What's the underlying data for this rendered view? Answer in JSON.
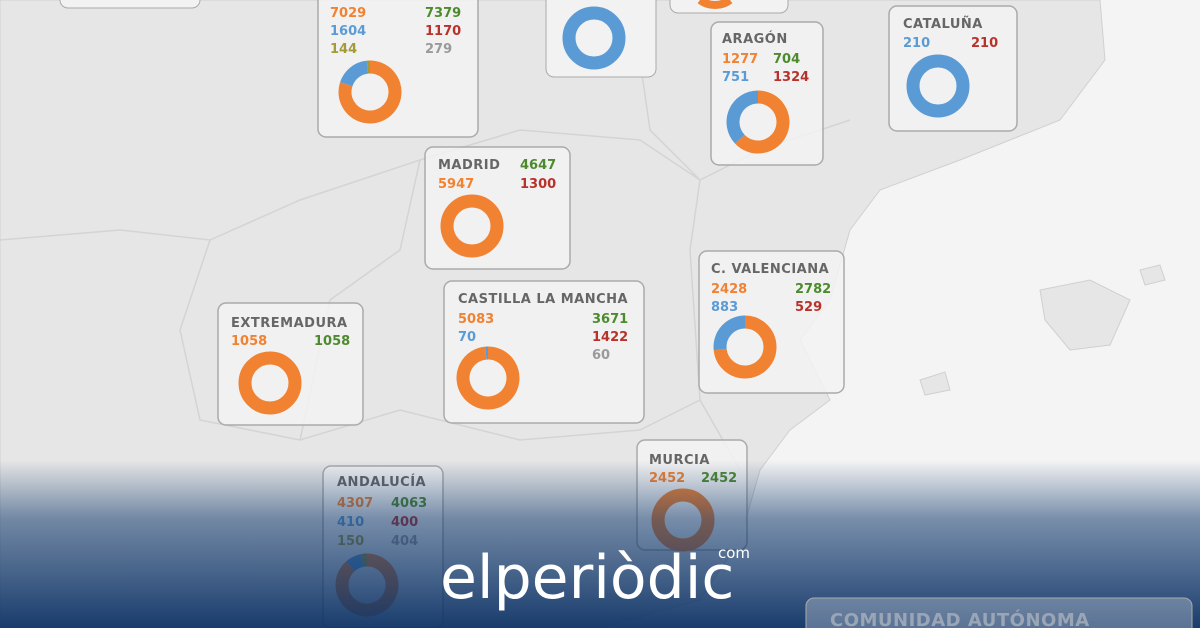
{
  "regions": [
    {
      "left": [
        {
          "value": 7029,
          "color": "#f08232"
        },
        {
          "value": 1604,
          "color": "#5b9bd5"
        },
        {
          "value": 144,
          "color": "#a39a3c"
        }
      ],
      "right": [
        {
          "value": 7379,
          "color": "#4d8a2e"
        },
        {
          "value": 1170,
          "color": "#b8322c"
        },
        {
          "value": 279,
          "color": "#9a9a9a"
        }
      ]
    },
    {
      "name": "ARAGÓN",
      "left": [
        {
          "value": 1277,
          "color": "#f08232"
        },
        {
          "value": 751,
          "color": "#5b9bd5"
        }
      ],
      "right": [
        {
          "value": 704,
          "color": "#4d8a2e"
        },
        {
          "value": 1324,
          "color": "#b8322c"
        }
      ]
    },
    {
      "name": "CATALUÑA",
      "left": [
        {
          "value": 210,
          "color": "#5b9bd5"
        }
      ],
      "right": [
        {
          "value": 210,
          "color": "#b8322c"
        }
      ]
    },
    {
      "name": "MADRID",
      "left": [
        {
          "value": 5947,
          "color": "#f08232"
        }
      ],
      "right": [
        {
          "value": 4647,
          "color": "#4d8a2e"
        },
        {
          "value": 1300,
          "color": "#b8322c"
        }
      ]
    },
    {
      "name": "CASTILLA LA MANCHA",
      "left": [
        {
          "value": 5083,
          "color": "#f08232"
        },
        {
          "value": 70,
          "color": "#5b9bd5"
        }
      ],
      "right": [
        {
          "value": 3671,
          "color": "#4d8a2e"
        },
        {
          "value": 1422,
          "color": "#b8322c"
        },
        {
          "value": 60,
          "color": "#9a9a9a"
        }
      ]
    },
    {
      "name": "EXTREMADURA",
      "left": [
        {
          "value": 1058,
          "color": "#f08232"
        }
      ],
      "right": [
        {
          "value": 1058,
          "color": "#4d8a2e"
        }
      ]
    },
    {
      "name": "C. VALENCIANA",
      "left": [
        {
          "value": 2428,
          "color": "#f08232"
        },
        {
          "value": 883,
          "color": "#5b9bd5"
        }
      ],
      "right": [
        {
          "value": 2782,
          "color": "#4d8a2e"
        },
        {
          "value": 529,
          "color": "#b8322c"
        }
      ]
    },
    {
      "name": "MURCIA",
      "left": [
        {
          "value": 2452,
          "color": "#f08232"
        }
      ],
      "right": [
        {
          "value": 2452,
          "color": "#4d8a2e"
        }
      ]
    },
    {
      "name": "ANDALUCÍA",
      "left": [
        {
          "value": 4307,
          "color": "#f08232"
        },
        {
          "value": 410,
          "color": "#5b9bd5"
        },
        {
          "value": 150,
          "color": "#a39a3c"
        }
      ],
      "right": [
        {
          "value": 4063,
          "color": "#4d8a2e"
        },
        {
          "value": 400,
          "color": "#b8322c"
        },
        {
          "value": 404,
          "color": "#9a9a9a"
        }
      ]
    }
  ],
  "legend_title": "COMUNIDAD AUTÓNOMA",
  "logo": {
    "name": "elperiòdic",
    "domain": "com"
  }
}
